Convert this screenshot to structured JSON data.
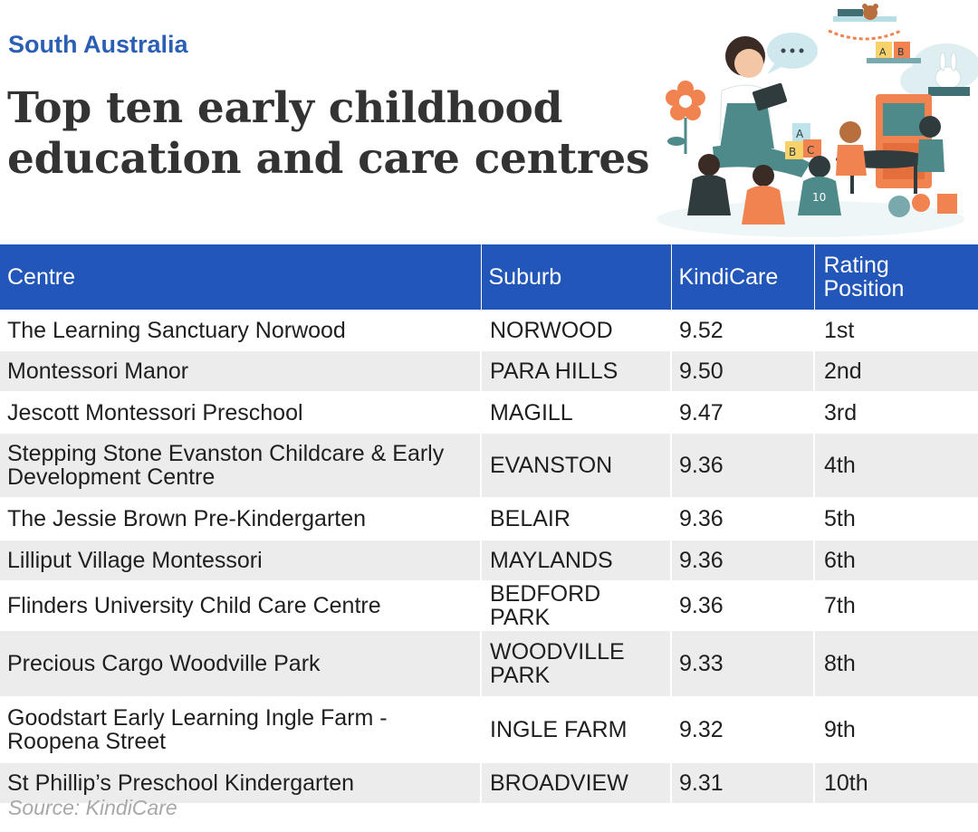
{
  "header": {
    "region": "South Australia",
    "title": "Top ten early childhood education and care centres"
  },
  "table": {
    "columns": [
      "Centre",
      "Suburb",
      "KindiCare",
      "Rating Position"
    ],
    "rows": [
      {
        "centre": "The Learning Sanctuary Norwood",
        "suburb": "NORWOOD",
        "score": "9.52",
        "position": "1st"
      },
      {
        "centre": "Montessori Manor",
        "suburb": "PARA HILLS",
        "score": "9.50",
        "position": "2nd"
      },
      {
        "centre": "Jescott Montessori Preschool",
        "suburb": "MAGILL",
        "score": "9.47",
        "position": "3rd"
      },
      {
        "centre": "Stepping Stone Evanston Childcare & Early Development Centre",
        "suburb": "EVANSTON",
        "score": "9.36",
        "position": "4th"
      },
      {
        "centre": "The Jessie Brown Pre-Kindergarten",
        "suburb": "BELAIR",
        "score": "9.36",
        "position": "5th"
      },
      {
        "centre": "Lilliput Village Montessori",
        "suburb": "MAYLANDS",
        "score": "9.36",
        "position": "6th"
      },
      {
        "centre": "Flinders University Child Care Centre",
        "suburb": "BEDFORD PARK",
        "score": "9.36",
        "position": "7th"
      },
      {
        "centre": "Precious Cargo Woodville Park",
        "suburb": "WOODVILLE PARK",
        "score": "9.33",
        "position": "8th"
      },
      {
        "centre": "Goodstart Early Learning Ingle Farm - Roopena Street",
        "suburb": "INGLE FARM",
        "score": "9.32",
        "position": "9th"
      },
      {
        "centre": "St Phillip’s Preschool Kindergarten",
        "suburb": "BROADVIEW",
        "score": "9.31",
        "position": "10th"
      }
    ]
  },
  "illustration": {
    "icon": "classroom-storytime-illustration",
    "block_letters": [
      "A",
      "B",
      "C",
      "A",
      "B"
    ],
    "shirt_number": "10",
    "colors": {
      "accent_orange": "#f0834f",
      "teal": "#4f8a8b",
      "dark": "#2f3b3d",
      "light_blue": "#bfe3ea"
    }
  },
  "footer": {
    "source": "Source: KindiCare"
  },
  "colors": {
    "region_blue": "#2b5fb3",
    "header_blue": "#2257b9",
    "stripe_grey": "#ececec",
    "title_grey": "#333333",
    "source_grey": "#a8a8a8"
  }
}
